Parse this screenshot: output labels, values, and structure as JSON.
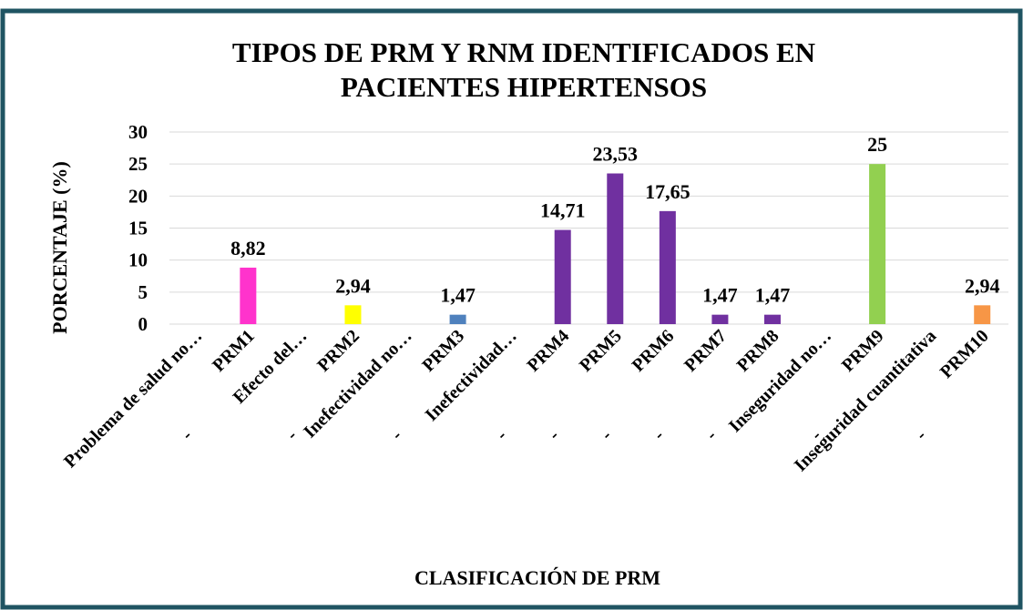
{
  "chart_data": {
    "type": "bar",
    "title": [
      "TIPOS DE PRM Y RNM IDENTIFICADOS EN",
      "PACIENTES HIPERTENSOS"
    ],
    "y_label": "PORCENTAJE (%)",
    "x_label": "CLASIFICACIÓN DE PRM",
    "categories": [
      [
        "Problema de salud no…"
      ],
      [
        "-",
        "PRM1"
      ],
      [
        "Efecto del…"
      ],
      [
        "-",
        "PRM2"
      ],
      [
        "Inefectividad no…"
      ],
      [
        "-",
        "PRM3"
      ],
      [
        "Inefectividad…"
      ],
      [
        "-",
        "PRM4"
      ],
      [
        "-",
        "PRM5"
      ],
      [
        "-",
        "PRM6"
      ],
      [
        "-",
        "PRM7"
      ],
      [
        "-",
        "PRM8"
      ],
      [
        "Inseguridad no…"
      ],
      [
        "-",
        "PRM9"
      ],
      [
        "Inseguridad cuantitativa"
      ],
      [
        "-",
        "PRM10"
      ]
    ],
    "values": [
      null,
      8.82,
      null,
      2.94,
      null,
      1.47,
      null,
      14.71,
      23.53,
      17.65,
      1.47,
      1.47,
      null,
      25,
      null,
      2.94
    ],
    "value_labels": [
      null,
      "8,82",
      null,
      "2,94",
      null,
      "1,47",
      null,
      "14,71",
      "23,53",
      "17,65",
      "1,47",
      "1,47",
      null,
      "25",
      null,
      "2,94"
    ],
    "colors": [
      null,
      "#ff33cc",
      null,
      "#ffff00",
      null,
      "#4f81bd",
      null,
      "#7030a0",
      "#7030a0",
      "#7030a0",
      "#7030a0",
      "#7030a0",
      null,
      "#92d050",
      null,
      "#f79646"
    ],
    "ylim": [
      0,
      30
    ],
    "yticks": [
      0,
      5,
      10,
      15,
      20,
      25,
      30
    ],
    "grid": true
  }
}
